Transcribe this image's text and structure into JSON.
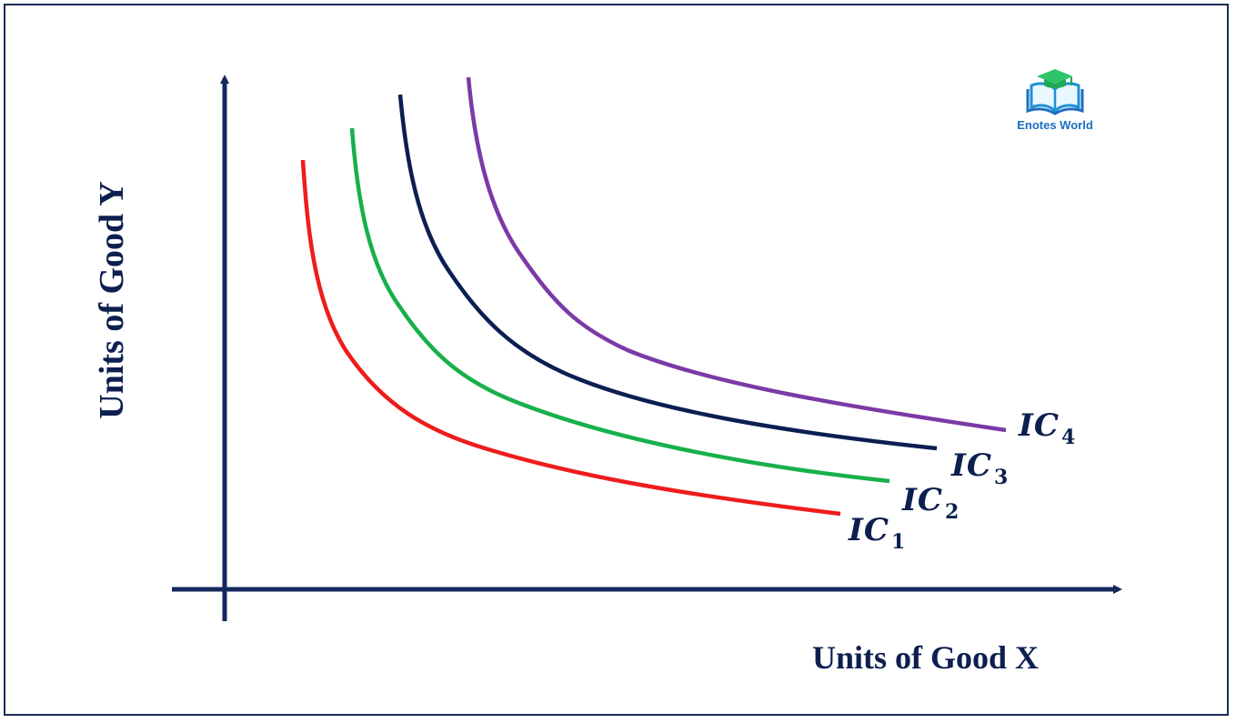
{
  "axes": {
    "x_label": "Units of Good X",
    "y_label": "Units of Good Y"
  },
  "curves": [
    {
      "name": "IC",
      "sub": "1",
      "color": "#ee1c1c"
    },
    {
      "name": "IC",
      "sub": "2",
      "color": "#17b04b"
    },
    {
      "name": "IC",
      "sub": "3",
      "color": "#0c1e52"
    },
    {
      "name": "IC",
      "sub": "4",
      "color": "#7b3aa6"
    }
  ],
  "axis_color": "#14285c",
  "logo": {
    "text": "Enotes World",
    "icon": "graduation-cap-book-icon"
  }
}
